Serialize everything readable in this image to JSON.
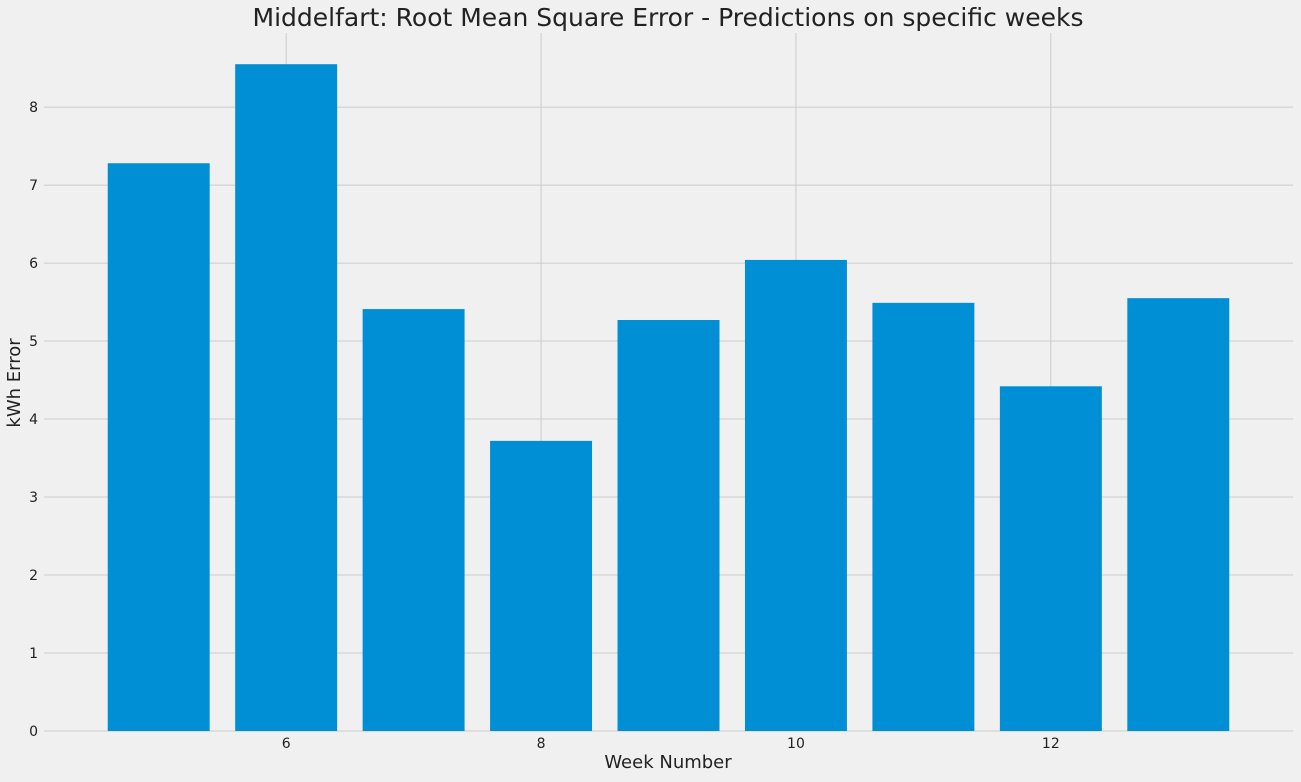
{
  "chart_data": {
    "type": "bar",
    "title": "Middelfart: Root Mean Square Error - Predictions on specific weeks",
    "xlabel": "Week Number",
    "ylabel": "kWh Error",
    "categories": [
      5,
      6,
      7,
      8,
      9,
      10,
      11,
      12,
      13
    ],
    "values": [
      7.28,
      8.55,
      5.41,
      3.72,
      5.27,
      6.04,
      5.49,
      4.42,
      5.55
    ],
    "xlim": [
      4.1,
      13.9
    ],
    "ylim": [
      0,
      8.95
    ],
    "xticks": [
      6,
      8,
      10,
      12
    ],
    "yticks": [
      0,
      1,
      2,
      3,
      4,
      5,
      6,
      7,
      8
    ],
    "grid": true,
    "colors": {
      "bar": "#008fd5",
      "background": "#f0f0f0",
      "grid": "#cbcbcb",
      "text": "#222222"
    }
  }
}
